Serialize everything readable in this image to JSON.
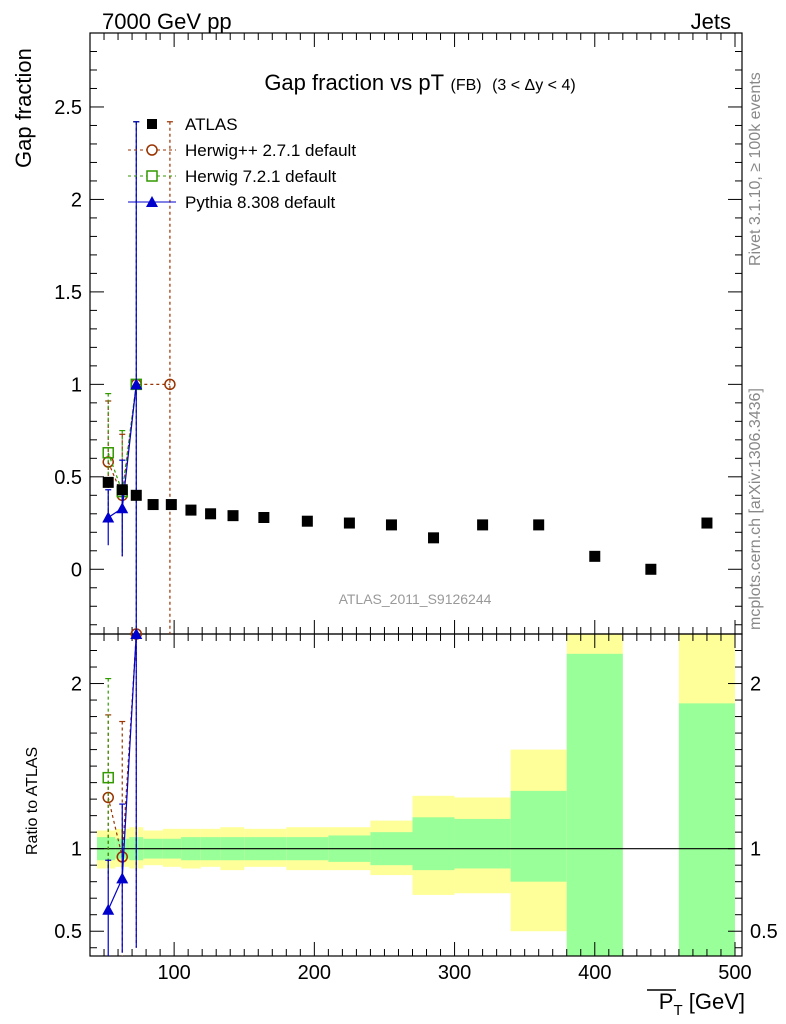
{
  "header": {
    "left": "7000 GeV pp",
    "right": "Jets"
  },
  "side_labels": {
    "rivet": "Rivet 3.1.10, ≥ 100k events",
    "mcplots": "mcplots.cern.ch [arXiv:1306.3436]"
  },
  "chart_data": {
    "type": "scatter",
    "title": {
      "main": "Gap fraction vs pT",
      "sub1": "(FB)",
      "sub2": "(3 < Δy < 4)"
    },
    "watermark": "ATLAS_2011_S9126244",
    "xlabel": "P_T [GeV]",
    "xlabel_main": "P",
    "xlabel_sub": "T",
    "xlabel_unit": " [GeV]",
    "xlim": [
      40,
      505
    ],
    "xticks": [
      100,
      200,
      300,
      400,
      500
    ],
    "main_panel": {
      "ylabel": "Gap fraction",
      "ylim": [
        -0.35,
        2.9
      ],
      "yticks": [
        0,
        0.5,
        1,
        1.5,
        2,
        2.5
      ],
      "yticklabels": [
        "0",
        "0.5",
        "1",
        "1.5",
        "2",
        "2.5"
      ],
      "legend_position": "top-left",
      "series": [
        {
          "name": "ATLAS",
          "color": "#000000",
          "marker": "square-filled",
          "x": [
            53,
            63,
            73,
            85,
            98,
            112,
            126,
            142,
            164,
            195,
            225,
            255,
            285,
            320,
            360,
            400,
            440,
            480
          ],
          "y": [
            0.47,
            0.43,
            0.4,
            0.35,
            0.35,
            0.32,
            0.3,
            0.29,
            0.28,
            0.26,
            0.25,
            0.24,
            0.17,
            0.24,
            0.24,
            0.07,
            0.0,
            0.25
          ]
        },
        {
          "name": "Herwig++ 2.7.1 default",
          "color": "#993300",
          "marker": "circle-open",
          "line": "dashed",
          "x": [
            53,
            63,
            73,
            97
          ],
          "y": [
            0.58,
            0.4,
            1.0,
            1.0
          ],
          "err": [
            0.33,
            0.33,
            1.42,
            1.42
          ]
        },
        {
          "name": "Herwig 7.2.1 default",
          "color": "#339900",
          "marker": "square-open",
          "line": "dashed",
          "x": [
            53,
            63,
            73
          ],
          "y": [
            0.63,
            0.42,
            1.0
          ],
          "err": [
            0.32,
            0.33,
            1.42
          ]
        },
        {
          "name": "Pythia 8.308 default",
          "color": "#0000cc",
          "marker": "triangle-filled",
          "line": "solid",
          "x": [
            53,
            63,
            73
          ],
          "y": [
            0.28,
            0.33,
            1.0
          ],
          "err": [
            0.15,
            0.26,
            1.42
          ]
        }
      ]
    },
    "ratio_panel": {
      "ylabel": "Ratio to ATLAS",
      "ylim": [
        0.35,
        2.3
      ],
      "yticks": [
        0.5,
        1,
        2
      ],
      "yticklabels": [
        "0.5",
        "1",
        "2"
      ],
      "bands": [
        {
          "x0": 45,
          "x1": 58,
          "g": [
            0.93,
            1.07
          ],
          "y": [
            0.88,
            1.11
          ]
        },
        {
          "x0": 58,
          "x1": 68,
          "g": [
            0.94,
            1.06
          ],
          "y": [
            0.89,
            1.12
          ]
        },
        {
          "x0": 68,
          "x1": 78,
          "g": [
            0.93,
            1.07
          ],
          "y": [
            0.88,
            1.13
          ]
        },
        {
          "x0": 78,
          "x1": 92,
          "g": [
            0.94,
            1.06
          ],
          "y": [
            0.9,
            1.11
          ]
        },
        {
          "x0": 92,
          "x1": 105,
          "g": [
            0.94,
            1.06
          ],
          "y": [
            0.89,
            1.12
          ]
        },
        {
          "x0": 105,
          "x1": 119,
          "g": [
            0.93,
            1.07
          ],
          "y": [
            0.88,
            1.12
          ]
        },
        {
          "x0": 119,
          "x1": 133,
          "g": [
            0.93,
            1.07
          ],
          "y": [
            0.89,
            1.12
          ]
        },
        {
          "x0": 133,
          "x1": 150,
          "g": [
            0.93,
            1.07
          ],
          "y": [
            0.87,
            1.13
          ]
        },
        {
          "x0": 150,
          "x1": 180,
          "g": [
            0.93,
            1.07
          ],
          "y": [
            0.89,
            1.12
          ]
        },
        {
          "x0": 180,
          "x1": 210,
          "g": [
            0.93,
            1.07
          ],
          "y": [
            0.87,
            1.13
          ]
        },
        {
          "x0": 210,
          "x1": 240,
          "g": [
            0.92,
            1.08
          ],
          "y": [
            0.87,
            1.13
          ]
        },
        {
          "x0": 240,
          "x1": 270,
          "g": [
            0.9,
            1.1
          ],
          "y": [
            0.84,
            1.17
          ]
        },
        {
          "x0": 270,
          "x1": 300,
          "g": [
            0.87,
            1.19
          ],
          "y": [
            0.72,
            1.32
          ]
        },
        {
          "x0": 300,
          "x1": 340,
          "g": [
            0.88,
            1.18
          ],
          "y": [
            0.73,
            1.31
          ]
        },
        {
          "x0": 340,
          "x1": 380,
          "g": [
            0.8,
            1.35
          ],
          "y": [
            0.5,
            1.6
          ]
        },
        {
          "x0": 380,
          "x1": 420,
          "g": [
            0.35,
            2.18
          ],
          "y": [
            0.35,
            2.3
          ]
        },
        {
          "x0": 460,
          "x1": 500,
          "g": [
            0.35,
            1.88
          ],
          "y": [
            0.35,
            2.3
          ]
        }
      ],
      "series": [
        {
          "name": "Herwig++ 2.7.1 default",
          "color": "#993300",
          "marker": "circle-open",
          "line": "dashed",
          "x": [
            53,
            63,
            73
          ],
          "y": [
            1.31,
            0.95,
            2.3
          ],
          "err": [
            0.5,
            0.82,
            1.9
          ]
        },
        {
          "name": "Herwig 7.2.1 default",
          "color": "#339900",
          "marker": "square-open",
          "line": "dashed",
          "x": [
            53
          ],
          "y": [
            1.43
          ],
          "err": [
            0.6
          ]
        },
        {
          "name": "Pythia 8.308 default",
          "color": "#0000cc",
          "marker": "triangle-filled",
          "line": "solid",
          "x": [
            53,
            63,
            73
          ],
          "y": [
            0.63,
            0.82,
            2.3
          ],
          "err": [
            0.3,
            0.45,
            1.9
          ]
        }
      ]
    },
    "colors": {
      "band_inner": "#99ff99",
      "band_outer": "#ffff99",
      "watermark": "#999999",
      "side_label": "#888888"
    }
  }
}
